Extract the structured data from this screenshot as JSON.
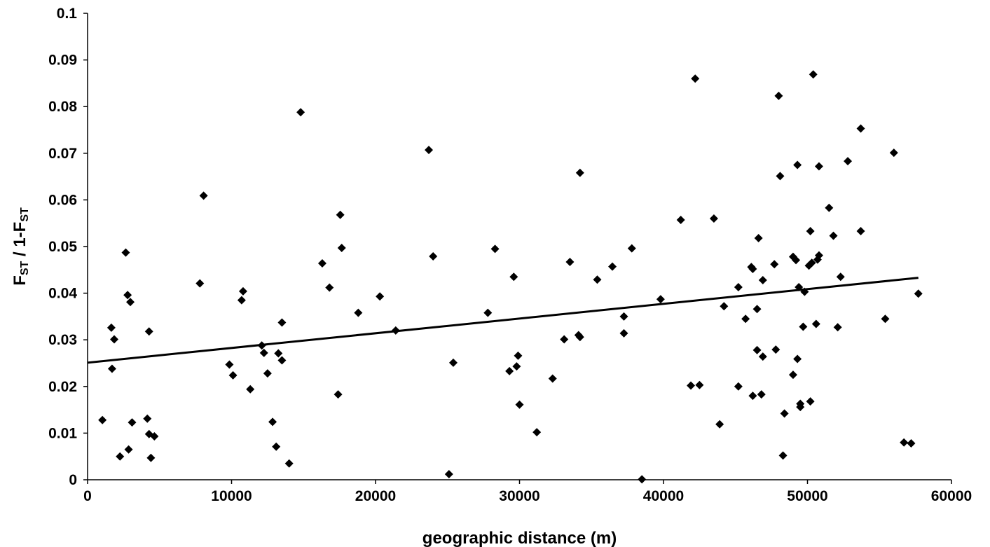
{
  "chart_data": {
    "type": "scatter",
    "title": "",
    "xlabel": "geographic distance (m)",
    "ylabel": {
      "parts": [
        {
          "text": "F",
          "sub": false
        },
        {
          "text": "ST",
          "sub": true
        },
        {
          "text": " / 1-F",
          "sub": false
        },
        {
          "text": "ST",
          "sub": true
        }
      ]
    },
    "xlim": [
      0,
      60000
    ],
    "ylim": [
      0,
      0.1
    ],
    "xticks": [
      0,
      10000,
      20000,
      30000,
      40000,
      50000,
      60000
    ],
    "xtick_labels": [
      "0",
      "10000",
      "20000",
      "30000",
      "40000",
      "50000",
      "60000"
    ],
    "yticks": [
      0,
      0.01,
      0.02,
      0.03,
      0.04,
      0.05,
      0.06,
      0.07,
      0.08,
      0.09,
      0.1
    ],
    "ytick_labels": [
      "0",
      "0.01",
      "0.02",
      "0.03",
      "0.04",
      "0.05",
      "0.06",
      "0.07",
      "0.08",
      "0.09",
      "0.1"
    ],
    "grid": false,
    "marker": "diamond",
    "marker_color": "#000000",
    "trendline": {
      "type": "linear",
      "x": [
        0,
        57700
      ],
      "y": [
        0.0251,
        0.0433
      ],
      "color": "#000000"
    },
    "points": [
      [
        1030,
        0.0128
      ],
      [
        1650,
        0.0326
      ],
      [
        1700,
        0.0238
      ],
      [
        1850,
        0.0301
      ],
      [
        2250,
        0.005
      ],
      [
        2650,
        0.0487
      ],
      [
        2780,
        0.0396
      ],
      [
        2850,
        0.0065
      ],
      [
        2970,
        0.0381
      ],
      [
        3090,
        0.0123
      ],
      [
        4150,
        0.0131
      ],
      [
        4270,
        0.0318
      ],
      [
        4270,
        0.0098
      ],
      [
        4400,
        0.0047
      ],
      [
        4640,
        0.0093
      ],
      [
        7800,
        0.0421
      ],
      [
        8060,
        0.0609
      ],
      [
        9850,
        0.0247
      ],
      [
        10100,
        0.0224
      ],
      [
        10700,
        0.0385
      ],
      [
        10800,
        0.0404
      ],
      [
        11300,
        0.0194
      ],
      [
        12100,
        0.0288
      ],
      [
        12250,
        0.0272
      ],
      [
        12500,
        0.0228
      ],
      [
        12850,
        0.0124
      ],
      [
        13100,
        0.0071
      ],
      [
        13250,
        0.0271
      ],
      [
        13500,
        0.0256
      ],
      [
        13500,
        0.0337
      ],
      [
        14000,
        0.0035
      ],
      [
        14800,
        0.0788
      ],
      [
        16300,
        0.0464
      ],
      [
        16800,
        0.0412
      ],
      [
        17400,
        0.0183
      ],
      [
        17550,
        0.0568
      ],
      [
        17650,
        0.0497
      ],
      [
        18800,
        0.0358
      ],
      [
        20300,
        0.0393
      ],
      [
        21400,
        0.032
      ],
      [
        23700,
        0.0707
      ],
      [
        24000,
        0.0479
      ],
      [
        25100,
        0.0012
      ],
      [
        25400,
        0.0251
      ],
      [
        27800,
        0.0358
      ],
      [
        28300,
        0.0495
      ],
      [
        29300,
        0.0233
      ],
      [
        29600,
        0.0435
      ],
      [
        29800,
        0.0243
      ],
      [
        29900,
        0.0266
      ],
      [
        30000,
        0.0161
      ],
      [
        31200,
        0.0102
      ],
      [
        32300,
        0.0217
      ],
      [
        33100,
        0.0301
      ],
      [
        33500,
        0.0467
      ],
      [
        34100,
        0.031
      ],
      [
        34200,
        0.0306
      ],
      [
        34200,
        0.0658
      ],
      [
        35400,
        0.0429
      ],
      [
        36450,
        0.0457
      ],
      [
        37250,
        0.035
      ],
      [
        37250,
        0.0314
      ],
      [
        37800,
        0.0496
      ],
      [
        38500,
        0.0001
      ],
      [
        39800,
        0.0387
      ],
      [
        41200,
        0.0557
      ],
      [
        41900,
        0.0202
      ],
      [
        42200,
        0.086
      ],
      [
        42500,
        0.0203
      ],
      [
        43500,
        0.056
      ],
      [
        43900,
        0.0119
      ],
      [
        44200,
        0.0372
      ],
      [
        45200,
        0.0413
      ],
      [
        45200,
        0.02
      ],
      [
        45700,
        0.0345
      ],
      [
        46100,
        0.0456
      ],
      [
        46200,
        0.0452
      ],
      [
        46200,
        0.018
      ],
      [
        46500,
        0.0366
      ],
      [
        46500,
        0.0278
      ],
      [
        46600,
        0.0518
      ],
      [
        46800,
        0.0183
      ],
      [
        46900,
        0.0264
      ],
      [
        46900,
        0.0428
      ],
      [
        47700,
        0.0462
      ],
      [
        47800,
        0.0279
      ],
      [
        48000,
        0.0823
      ],
      [
        48100,
        0.0651
      ],
      [
        48300,
        0.0052
      ],
      [
        48400,
        0.0142
      ],
      [
        49000,
        0.0478
      ],
      [
        49000,
        0.0225
      ],
      [
        49200,
        0.0471
      ],
      [
        49300,
        0.0675
      ],
      [
        49300,
        0.0259
      ],
      [
        49400,
        0.0413
      ],
      [
        49500,
        0.0163
      ],
      [
        49500,
        0.0156
      ],
      [
        49700,
        0.0328
      ],
      [
        49800,
        0.0403
      ],
      [
        50100,
        0.0459
      ],
      [
        50200,
        0.0533
      ],
      [
        50200,
        0.0168
      ],
      [
        50300,
        0.0465
      ],
      [
        50400,
        0.0869
      ],
      [
        50600,
        0.0334
      ],
      [
        50700,
        0.0472
      ],
      [
        50800,
        0.0672
      ],
      [
        50800,
        0.0481
      ],
      [
        51500,
        0.0583
      ],
      [
        51800,
        0.0523
      ],
      [
        52100,
        0.0327
      ],
      [
        52300,
        0.0435
      ],
      [
        52800,
        0.0683
      ],
      [
        53700,
        0.0533
      ],
      [
        53700,
        0.0753
      ],
      [
        55400,
        0.0345
      ],
      [
        56000,
        0.0701
      ],
      [
        56700,
        0.008
      ],
      [
        57200,
        0.0078
      ],
      [
        57700,
        0.0399
      ]
    ]
  }
}
